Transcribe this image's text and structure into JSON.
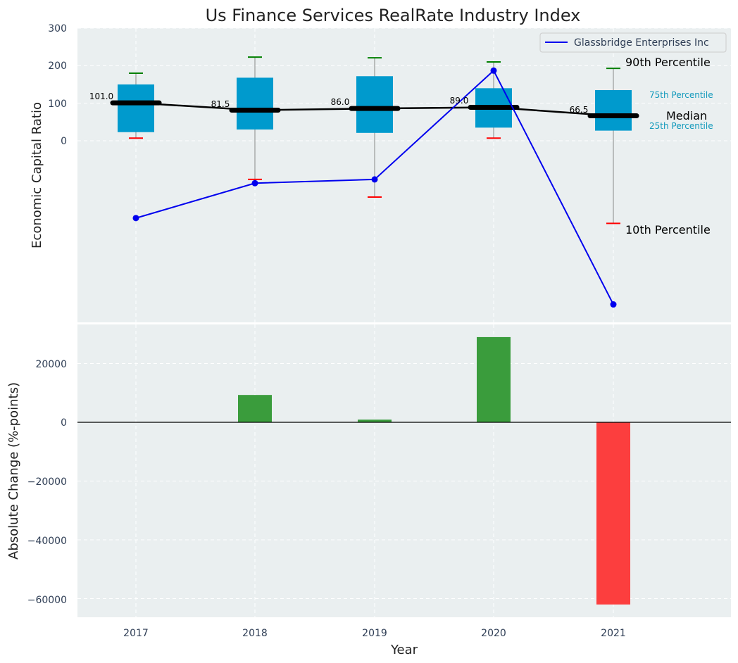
{
  "chart_data": [
    {
      "type": "box",
      "title": "Us Finance Services RealRate Industry Index",
      "ylabel": "Economic Capital Ratio",
      "ylim": [
        -480,
        300
      ],
      "yticks": [
        "300",
        "200",
        "100",
        "0"
      ],
      "ytick_values": [
        300,
        200,
        100,
        0
      ],
      "categories": [
        "2017",
        "2018",
        "2019",
        "2020",
        "2021"
      ],
      "boxes": [
        {
          "year": "2017",
          "p10": 7,
          "p25": 23,
          "median": 101.0,
          "p75": 150,
          "p90": 180,
          "median_label": "101.0"
        },
        {
          "year": "2018",
          "p10": -103,
          "p25": 30,
          "median": 81.5,
          "p75": 168,
          "p90": 223,
          "median_label": "81.5"
        },
        {
          "year": "2019",
          "p10": -150,
          "p25": 21,
          "median": 86.0,
          "p75": 172,
          "p90": 221,
          "median_label": "86.0"
        },
        {
          "year": "2020",
          "p10": 7,
          "p25": 35,
          "median": 89.0,
          "p75": 140,
          "p90": 210,
          "median_label": "89.0"
        },
        {
          "year": "2021",
          "p10": -220,
          "p25": 27,
          "median": 66.5,
          "p75": 135,
          "p90": 193,
          "median_label": "66.5"
        }
      ],
      "series": [
        {
          "name": "Glassbridge Enterprises Inc",
          "values": [
            -206,
            -113,
            -103,
            187,
            -436
          ],
          "color": "#0000ee"
        }
      ],
      "annotations": {
        "p90": "90th Percentile",
        "p75": "75th Percentile",
        "median": "Median",
        "p25": "25th Percentile",
        "p10": "10th Percentile"
      },
      "legend": {
        "label": "Glassbridge Enterprises Inc",
        "position": "top-right"
      }
    },
    {
      "type": "bar",
      "ylabel": "Absolute Change (%-points)",
      "xlabel": "Year",
      "ylim": [
        -66000,
        34000
      ],
      "yticks": [
        "20000",
        "0",
        "−20000",
        "−40000",
        "−60000"
      ],
      "ytick_values": [
        20000,
        0,
        -20000,
        -40000,
        -60000
      ],
      "categories": [
        "2017",
        "2018",
        "2019",
        "2020",
        "2021"
      ],
      "values": [
        0,
        9300,
        900,
        29000,
        -62000
      ],
      "colors": {
        "positive": "#3a9c3c",
        "negative": "#fc3e3e"
      }
    }
  ],
  "colors": {
    "box": "#009acd",
    "panel": "#eaeff0",
    "median_line": "#000000",
    "whisker_top": "#008000",
    "whisker_bottom": "#ff0000",
    "annotation_teal": "#1199bb"
  }
}
